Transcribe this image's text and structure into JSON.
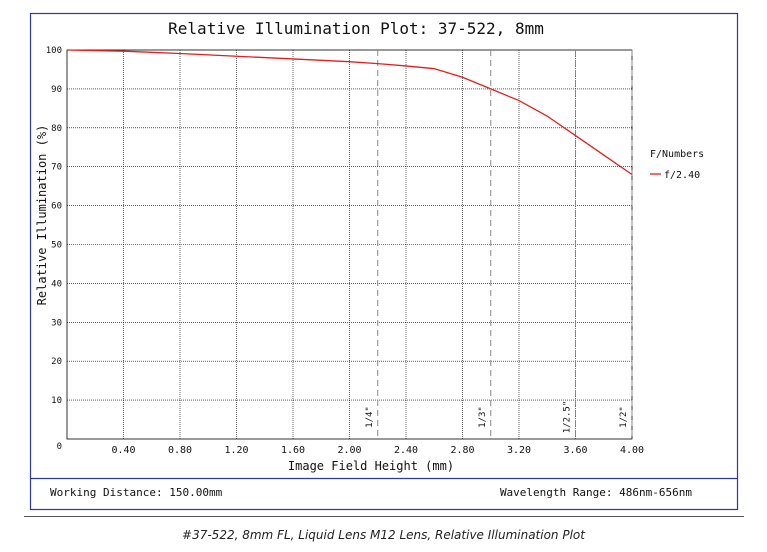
{
  "chart_data": {
    "type": "line",
    "title": "Relative Illumination Plot: 37-522, 8mm",
    "xlabel": "Image Field Height (mm)",
    "ylabel": "Relative Illumination (%)",
    "xlim": [
      0,
      4.0
    ],
    "ylim": [
      0,
      100
    ],
    "x_ticks": [
      "0.40",
      "0.80",
      "1.20",
      "1.60",
      "2.00",
      "2.40",
      "2.80",
      "3.20",
      "3.60",
      "4.00"
    ],
    "y_ticks": [
      "0",
      "10",
      "20",
      "30",
      "40",
      "50",
      "60",
      "70",
      "80",
      "90",
      "100"
    ],
    "grid": true,
    "legend": {
      "title": "F/Numbers",
      "position": "right"
    },
    "series": [
      {
        "name": "f/2.40",
        "color": "#e02020",
        "x": [
          0.0,
          0.4,
          0.8,
          1.2,
          1.6,
          2.0,
          2.2,
          2.4,
          2.6,
          2.8,
          3.0,
          3.2,
          3.4,
          3.6,
          3.8,
          4.0
        ],
        "y": [
          100,
          99.7,
          99.1,
          98.4,
          97.7,
          97.0,
          96.5,
          95.9,
          95.2,
          93.0,
          90.0,
          87.0,
          83.0,
          78.0,
          73.0,
          68.0
        ]
      }
    ],
    "reference_lines": [
      {
        "x": 2.2,
        "label": "1/4\""
      },
      {
        "x": 3.0,
        "label": "1/3\""
      },
      {
        "x": 3.6,
        "label": "1/2.5\""
      },
      {
        "x": 4.0,
        "label": "1/2\""
      }
    ]
  },
  "footer": {
    "working_distance": "Working Distance: 150.00mm",
    "wavelength_range": "Wavelength Range: 486nm-656nm"
  },
  "caption": "#37-522, 8mm FL, Liquid Lens M12 Lens, Relative Illumination Plot",
  "colors": {
    "frame": "#2b3aa0",
    "grid": "#000000",
    "refline": "#888888"
  }
}
